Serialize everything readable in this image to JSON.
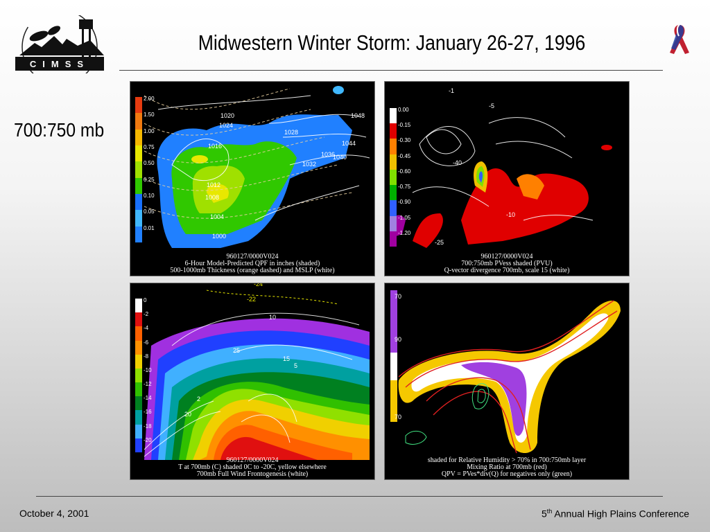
{
  "header": {
    "title": "Midwestern Winter Storm: January 26-27, 1996",
    "logo_text": "CIMSS"
  },
  "level_label": "700:750 mb",
  "panels": [
    {
      "caption": [
        "960127/0000V024",
        "6-Hour Model-Predicted QPF in inches (shaded)",
        "500-1000mb Thickness (orange dashed) and MSLP (white)"
      ],
      "colorbar": [
        "2.00",
        "1.50",
        "1.00",
        "0.75",
        "0.50",
        "0.25",
        "0.10",
        "0.05",
        "0.01"
      ],
      "labels": [
        "1048",
        "1044",
        "1040",
        "1036",
        "1032",
        "1028",
        "1024",
        "1020",
        "1016",
        "1012",
        "1008",
        "1004",
        "1000"
      ]
    },
    {
      "caption": [
        "960127/0000V024",
        "700:750mb PVess shaded (PVU)",
        "Q-vector divergence 700mb, scale 15 (white)"
      ],
      "colorbar": [
        "0.00",
        "-0.15",
        "-0.30",
        "-0.45",
        "-0.60",
        "-0.75",
        "-0.90",
        "-1.05",
        "-1.20"
      ],
      "labels": [
        "-1",
        "-5",
        "-10",
        "-25",
        "-40"
      ]
    },
    {
      "caption": [
        "960127/0000V024",
        "T at 700mb (C) shaded 0C to -20C, yellow elsewhere",
        "700mb Full Wind Frontogenesis (white)"
      ],
      "colorbar": [
        "0",
        "-2",
        "-4",
        "-6",
        "-8",
        "-10",
        "-12",
        "-14",
        "-16",
        "-18",
        "-20"
      ],
      "labels": [
        "-24",
        "-22",
        "10",
        "25",
        "15",
        "5",
        "2",
        "20"
      ]
    },
    {
      "caption": [
        "shaded for Relative Humidity > 70% in 700:750mb layer",
        "Mixing Ratio at 700mb (red)",
        "QPV = PVes*div(Q) for negatives only (green)"
      ],
      "colorbar": [
        "70",
        "90",
        "70"
      ]
    }
  ],
  "footer": {
    "date": "October 4, 2001",
    "conference_prefix": "5",
    "conference_sup": "th",
    "conference_rest": " Annual High Plains Conference"
  },
  "colors": {
    "qpf": [
      "#e63b10",
      "#f07a10",
      "#f5b800",
      "#e8e800",
      "#a0e000",
      "#30c800",
      "#1870ff",
      "#40b8ff",
      "#2080ff"
    ],
    "pv": [
      "#ffffff",
      "#e00000",
      "#ff8000",
      "#f0c000",
      "#80e000",
      "#00b000",
      "#3060ff",
      "#a080e0",
      "#a000a0"
    ],
    "temp": [
      "#ffffff",
      "#e01010",
      "#ff6000",
      "#ff9000",
      "#f0d000",
      "#90e000",
      "#30c000",
      "#008020",
      "#00a0a0",
      "#40b0ff",
      "#2040ff",
      "#a030e0"
    ],
    "rh": [
      "#f5c800",
      "#ffffff",
      "#a040e0"
    ]
  }
}
